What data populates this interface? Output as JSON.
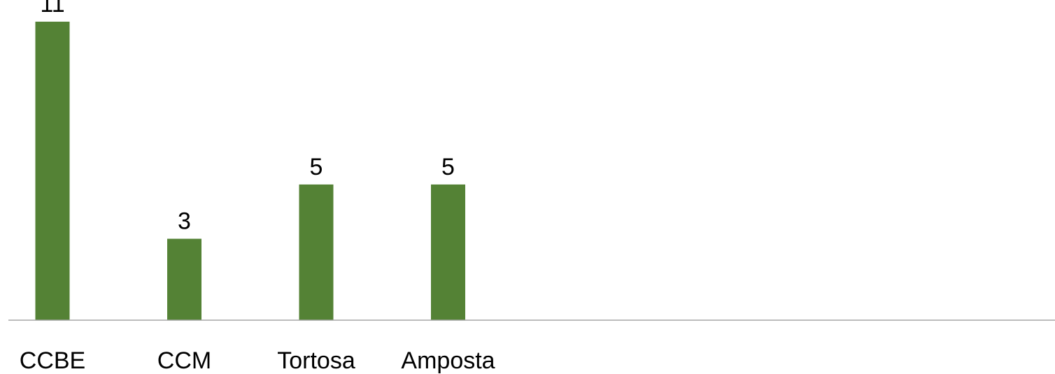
{
  "chart_data": {
    "type": "bar",
    "categories": [
      "CCBE",
      "CCM",
      "Tortosa",
      "Amposta"
    ],
    "values": [
      11,
      3,
      5,
      5
    ],
    "title": "",
    "xlabel": "",
    "ylabel": "",
    "ylim": [
      0,
      11
    ],
    "grid": false,
    "legend": "none",
    "bar_color": "#548235",
    "axis_color": "#a6a6a6"
  }
}
